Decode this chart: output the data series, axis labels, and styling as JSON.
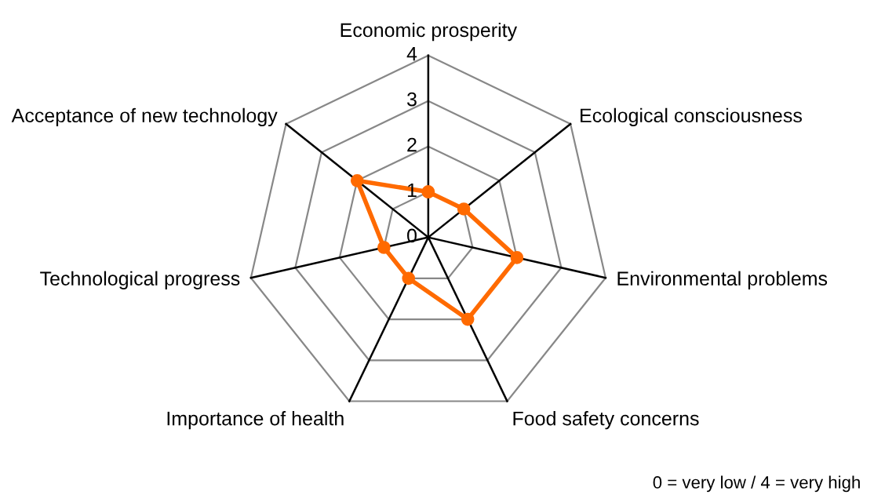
{
  "chart_data": {
    "type": "radar",
    "categories": [
      "Economic prosperity",
      "Ecological consciousness",
      "Environmental problems",
      "Food safety concerns",
      "Importance of health",
      "Technological progress",
      "Acceptance of new technology"
    ],
    "series": [
      {
        "color": "#ff6a00",
        "values": [
          1,
          1,
          2,
          2,
          1,
          1,
          2
        ]
      }
    ],
    "ylim": [
      0,
      4
    ],
    "yticks": [
      0,
      1,
      2,
      3,
      4
    ],
    "grid": true,
    "marker": "circle",
    "line_style": "solid",
    "annotations": [
      "0 = very low / 4 = very high"
    ]
  }
}
